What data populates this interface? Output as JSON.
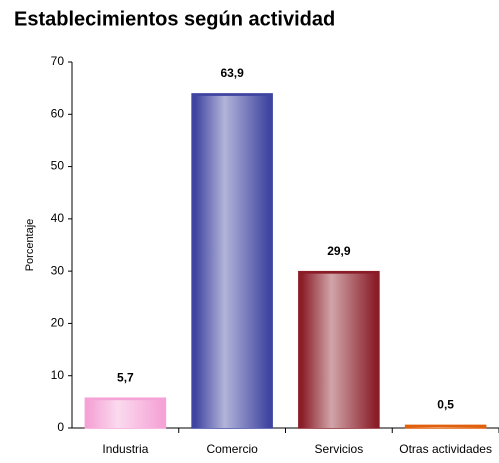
{
  "chart_data": {
    "type": "bar",
    "title": "Establecimientos según actividad",
    "y_label": "Porcentaje",
    "categories": [
      "Industria",
      "Comercio",
      "Servicios",
      "Otras actividades"
    ],
    "values": [
      5.7,
      63.9,
      29.9,
      0.5
    ],
    "value_labels": [
      "5,7",
      "63,9",
      "29,9",
      "0,5"
    ],
    "colors": [
      "#f5a3d6",
      "#3f44a0",
      "#8a1d28",
      "#e0600e"
    ],
    "ylim": [
      0,
      70
    ],
    "yticks": [
      0,
      10,
      20,
      30,
      40,
      50,
      60,
      70
    ],
    "grid": false
  }
}
